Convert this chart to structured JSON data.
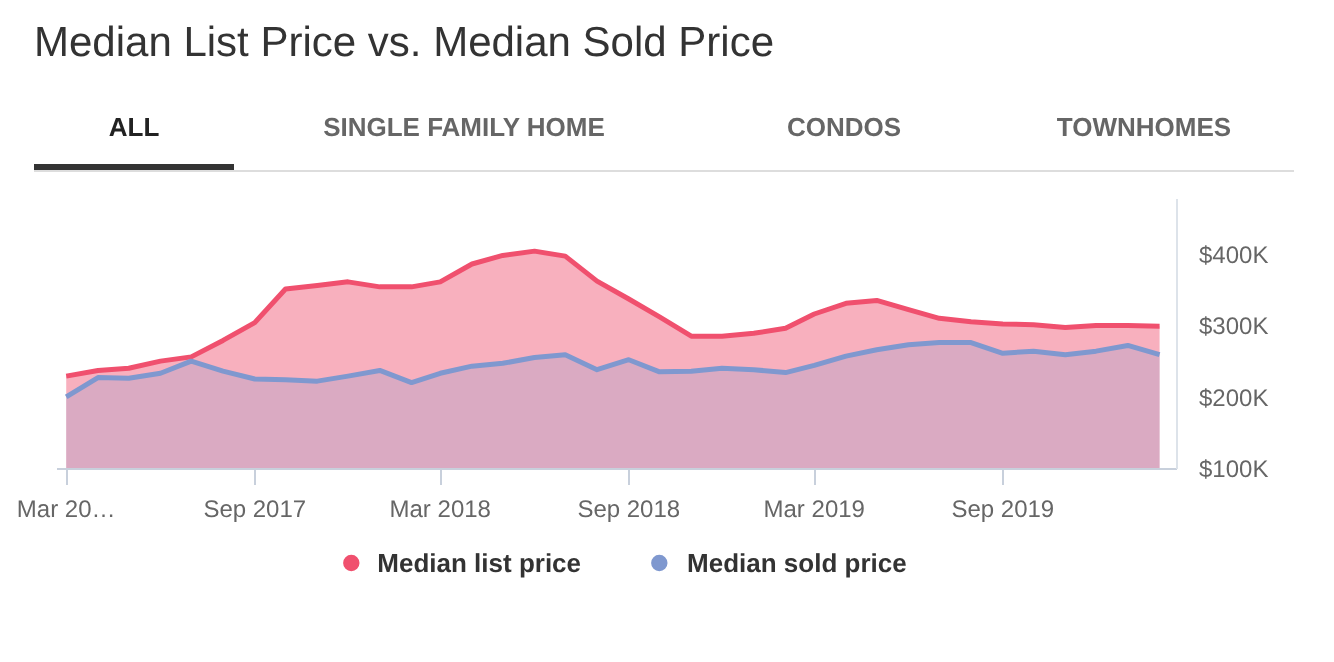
{
  "chart_data": {
    "type": "area",
    "title": "Median List Price vs. Median Sold Price",
    "annotations": [
      "ALL",
      "SINGLE FAMILY HOME",
      "CONDOS",
      "TOWNHOMES"
    ],
    "x": [
      "2017-03",
      "2017-04",
      "2017-05",
      "2017-06",
      "2017-07",
      "2017-08",
      "2017-09",
      "2017-10",
      "2017-11",
      "2017-12",
      "2018-01",
      "2018-02",
      "2018-03",
      "2018-04",
      "2018-05",
      "2018-06",
      "2018-07",
      "2018-08",
      "2018-09",
      "2018-10",
      "2018-11",
      "2018-12",
      "2019-01",
      "2019-02",
      "2019-03",
      "2019-04",
      "2019-05",
      "2019-06",
      "2019-07",
      "2019-08",
      "2019-09",
      "2019-10",
      "2019-11",
      "2019-12",
      "2020-01",
      "2020-02"
    ],
    "series": [
      {
        "name": "Median list price",
        "color": "#f0506e",
        "values": [
          230000,
          238000,
          241000,
          251000,
          257000,
          280000,
          305000,
          352000,
          357000,
          362000,
          355000,
          355000,
          362000,
          387000,
          399000,
          405000,
          398000,
          363000,
          338000,
          313000,
          286000,
          286000,
          290000,
          297000,
          317000,
          332000,
          336000,
          323000,
          311000,
          306000,
          303000,
          302000,
          298000,
          301000,
          301000,
          300000
        ]
      },
      {
        "name": "Median sold price",
        "color": "#7f98cf",
        "values": [
          201000,
          228000,
          227000,
          234000,
          251000,
          237000,
          226000,
          225000,
          223000,
          230000,
          238000,
          221000,
          234000,
          244000,
          248000,
          256000,
          260000,
          239000,
          253000,
          236000,
          237000,
          241000,
          239000,
          235000,
          245000,
          258000,
          267000,
          274000,
          277000,
          277000,
          262000,
          265000,
          260000,
          265000,
          273000,
          260000
        ]
      }
    ],
    "xlim": [
      "2017-02-20",
      "2020-02-18"
    ],
    "xticks": [
      {
        "value": "2017-03",
        "label": "Mar 20…"
      },
      {
        "value": "2017-09",
        "label": "Sep 2017"
      },
      {
        "value": "2018-03",
        "label": "Mar 2018"
      },
      {
        "value": "2018-09",
        "label": "Sep 2018"
      },
      {
        "value": "2019-03",
        "label": "Mar 2019"
      },
      {
        "value": "2019-09",
        "label": "Sep 2019"
      }
    ],
    "ylim": [
      100000,
      478000
    ],
    "yticks": [
      {
        "value": 100000,
        "label": "$100K"
      },
      {
        "value": 200000,
        "label": "$200K"
      },
      {
        "value": 300000,
        "label": "$300K"
      },
      {
        "value": 400000,
        "label": "$400K"
      }
    ],
    "grid": false,
    "legend": "bottom"
  }
}
